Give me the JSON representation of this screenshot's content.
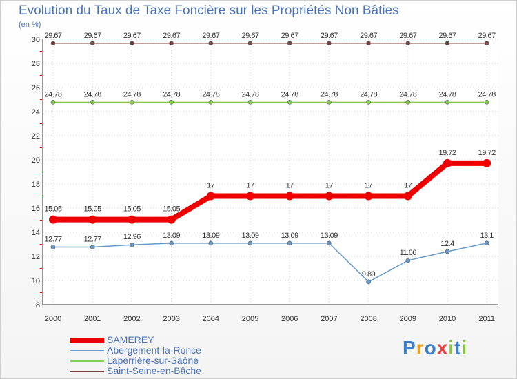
{
  "chart_data": {
    "type": "line",
    "title": "Evolution du Taux de Taxe Foncière sur les Propriétés Non Bâties",
    "ylabel": "(en %)",
    "xlabel": "",
    "x": [
      "2000",
      "2001",
      "2002",
      "2003",
      "2004",
      "2005",
      "2006",
      "2007",
      "2008",
      "2009",
      "2010",
      "2011"
    ],
    "ylim": [
      8,
      30
    ],
    "yticks": [
      "8",
      "10",
      "12",
      "14",
      "16",
      "18",
      "20",
      "22",
      "24",
      "26",
      "28",
      "30"
    ],
    "grid": true,
    "legend_position": "bottom-left",
    "series": [
      {
        "name": "SAMEREY",
        "color": "#ee0000",
        "values": [
          15.05,
          15.05,
          15.05,
          15.05,
          17,
          17,
          17,
          17,
          17,
          17,
          19.72,
          19.72
        ],
        "labels": [
          "15.05",
          "15.05",
          "15.05",
          "15.05",
          "17",
          "17",
          "17",
          "17",
          "17",
          "17",
          "19.72",
          "19.72"
        ]
      },
      {
        "name": "Abergement-la-Ronce",
        "color": "#6699cc",
        "values": [
          12.77,
          12.77,
          12.96,
          13.09,
          13.09,
          13.09,
          13.09,
          13.09,
          9.89,
          11.66,
          12.4,
          13.1
        ],
        "labels": [
          "12.77",
          "12.77",
          "12.96",
          "13.09",
          "13.09",
          "13.09",
          "13.09",
          "13.09",
          "9.89",
          "11.66",
          "12.4",
          "13.1"
        ]
      },
      {
        "name": "Laperrière-sur-Saône",
        "color": "#88cc55",
        "values": [
          24.78,
          24.78,
          24.78,
          24.78,
          24.78,
          24.78,
          24.78,
          24.78,
          24.78,
          24.78,
          24.78,
          24.78
        ],
        "labels": [
          "24.78",
          "24.78",
          "24.78",
          "24.78",
          "24.78",
          "24.78",
          "24.78",
          "24.78",
          "24.78",
          "24.78",
          "24.78",
          "24.78"
        ]
      },
      {
        "name": "Saint-Seine-en-Bâche",
        "color": "#7a4444",
        "values": [
          29.67,
          29.67,
          29.67,
          29.67,
          29.67,
          29.67,
          29.67,
          29.67,
          29.67,
          29.67,
          29.67,
          29.67
        ],
        "labels": [
          "29.67",
          "29.67",
          "29.67",
          "29.67",
          "29.67",
          "29.67",
          "29.67",
          "29.67",
          "29.67",
          "29.67",
          "29.67",
          "29.67"
        ]
      }
    ]
  },
  "logo": {
    "text": "Proxiti",
    "letters": [
      "P",
      "r",
      "o",
      "x",
      "i",
      "t",
      "i"
    ],
    "colors": [
      "#3c7ec9",
      "#e8a020",
      "#3c7ec9",
      "#e84040",
      "#8bc34a",
      "#3c7ec9",
      "#8bc34a"
    ]
  }
}
